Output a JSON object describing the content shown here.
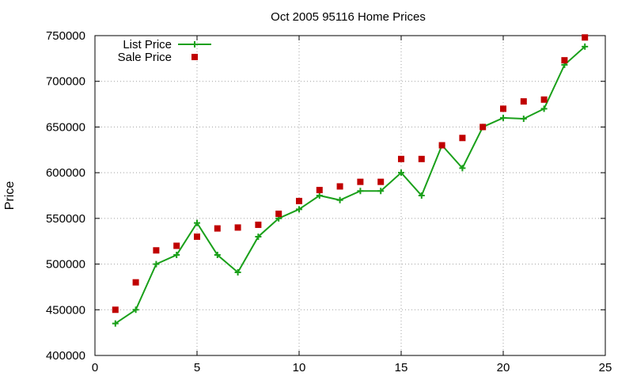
{
  "chart_data": {
    "type": "line",
    "title": "Oct 2005 95116 Home Prices",
    "xlabel": "",
    "ylabel": "Price",
    "xlim": [
      0,
      25
    ],
    "ylim": [
      400000,
      750000
    ],
    "xticks": [
      0,
      5,
      10,
      15,
      20,
      25
    ],
    "yticks": [
      400000,
      450000,
      500000,
      550000,
      600000,
      650000,
      700000,
      750000
    ],
    "grid": true,
    "legend_position": "top-left",
    "series": [
      {
        "name": "List Price",
        "style": "line-with-plus-markers",
        "color": "#1aa01a",
        "x": [
          1,
          2,
          3,
          4,
          5,
          6,
          7,
          8,
          9,
          10,
          11,
          12,
          13,
          14,
          15,
          16,
          17,
          18,
          19,
          20,
          21,
          22,
          23,
          24
        ],
        "y": [
          435000,
          450000,
          500000,
          510000,
          545000,
          510000,
          491000,
          530000,
          550000,
          560000,
          575000,
          570000,
          580000,
          580000,
          600000,
          575000,
          630000,
          605000,
          650000,
          660000,
          659000,
          670000,
          718000,
          738000
        ]
      },
      {
        "name": "Sale Price",
        "style": "square-markers",
        "color": "#c00000",
        "x": [
          1,
          2,
          3,
          4,
          5,
          6,
          7,
          8,
          9,
          10,
          11,
          12,
          13,
          14,
          15,
          16,
          17,
          18,
          19,
          20,
          21,
          22,
          23,
          24
        ],
        "y": [
          450000,
          480000,
          515000,
          520000,
          530000,
          539000,
          540000,
          543000,
          555000,
          569000,
          581000,
          585000,
          590000,
          590000,
          615000,
          615000,
          630000,
          638000,
          650000,
          670000,
          678000,
          680000,
          723000,
          748000
        ]
      }
    ]
  }
}
